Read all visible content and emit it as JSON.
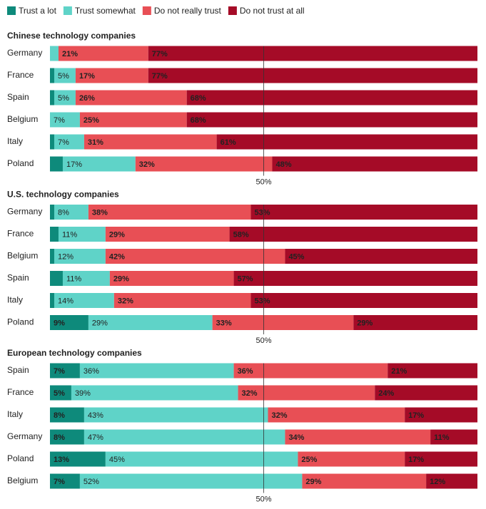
{
  "chart_data": [
    {
      "type": "bar",
      "orientation": "horizontal",
      "stacked": true,
      "title": "Chinese technology companies",
      "categories": [
        "Germany",
        "France",
        "Spain",
        "Belgium",
        "Italy",
        "Poland"
      ],
      "xlim": [
        0,
        100
      ],
      "reference_line": {
        "value": 50,
        "label": "50%"
      },
      "series": [
        {
          "name": "Trust a lot",
          "color": "#0e8a7b",
          "values": [
            0,
            1,
            1,
            0,
            1,
            3
          ],
          "value_labels": [
            null,
            null,
            null,
            null,
            null,
            null
          ]
        },
        {
          "name": "Trust somewhat",
          "color": "#5fd3c8",
          "values": [
            2,
            5,
            5,
            7,
            7,
            17
          ],
          "value_labels": [
            null,
            "5%",
            "5%",
            "7%",
            "7%",
            "17%"
          ]
        },
        {
          "name": "Do not really trust",
          "color": "#e84f55",
          "values": [
            21,
            17,
            26,
            25,
            31,
            32
          ],
          "value_labels": [
            "21%",
            "17%",
            "26%",
            "25%",
            "31%",
            "32%"
          ]
        },
        {
          "name": "Do not trust at all",
          "color": "#a50b27",
          "values": [
            77,
            77,
            68,
            68,
            61,
            48
          ],
          "value_labels": [
            "77%",
            "77%",
            "68%",
            "68%",
            "61%",
            "48%"
          ]
        }
      ]
    },
    {
      "type": "bar",
      "orientation": "horizontal",
      "stacked": true,
      "title": "U.S. technology companies",
      "categories": [
        "Germany",
        "France",
        "Belgium",
        "Spain",
        "Italy",
        "Poland"
      ],
      "xlim": [
        0,
        100
      ],
      "reference_line": {
        "value": 50,
        "label": "50%"
      },
      "series": [
        {
          "color": "#0e8a7b",
          "values": [
            1,
            2,
            1,
            3,
            1,
            9
          ],
          "value_labels": [
            null,
            null,
            null,
            null,
            null,
            "9%"
          ]
        },
        {
          "color": "#5fd3c8",
          "values": [
            8,
            11,
            12,
            11,
            14,
            29
          ],
          "value_labels": [
            "8%",
            "11%",
            "12%",
            "11%",
            "14%",
            "29%"
          ]
        },
        {
          "color": "#e84f55",
          "values": [
            38,
            29,
            42,
            29,
            32,
            33
          ],
          "value_labels": [
            "38%",
            "29%",
            "42%",
            "29%",
            "32%",
            "33%"
          ]
        },
        {
          "color": "#a50b27",
          "values": [
            53,
            58,
            45,
            57,
            53,
            29
          ],
          "value_labels": [
            "53%",
            "58%",
            "45%",
            "57%",
            "53%",
            "29%"
          ]
        }
      ]
    },
    {
      "type": "bar",
      "orientation": "horizontal",
      "stacked": true,
      "title": "European technology companies",
      "categories": [
        "Spain",
        "France",
        "Italy",
        "Germany",
        "Poland",
        "Belgium"
      ],
      "xlim": [
        0,
        100
      ],
      "reference_line": {
        "value": 50,
        "label": "50%"
      },
      "series": [
        {
          "color": "#0e8a7b",
          "values": [
            7,
            5,
            8,
            8,
            13,
            7
          ],
          "value_labels": [
            "7%",
            "5%",
            "8%",
            "8%",
            "13%",
            "7%"
          ]
        },
        {
          "color": "#5fd3c8",
          "values": [
            36,
            39,
            43,
            47,
            45,
            52
          ],
          "value_labels": [
            "36%",
            "39%",
            "43%",
            "47%",
            "45%",
            "52%"
          ]
        },
        {
          "color": "#e84f55",
          "values": [
            36,
            32,
            32,
            34,
            25,
            29
          ],
          "value_labels": [
            "36%",
            "32%",
            "32%",
            "34%",
            "25%",
            "29%"
          ]
        },
        {
          "color": "#a50b27",
          "values": [
            21,
            24,
            17,
            11,
            17,
            12
          ],
          "value_labels": [
            "21%",
            "24%",
            "17%",
            "11%",
            "17%",
            "12%"
          ]
        }
      ]
    }
  ]
}
